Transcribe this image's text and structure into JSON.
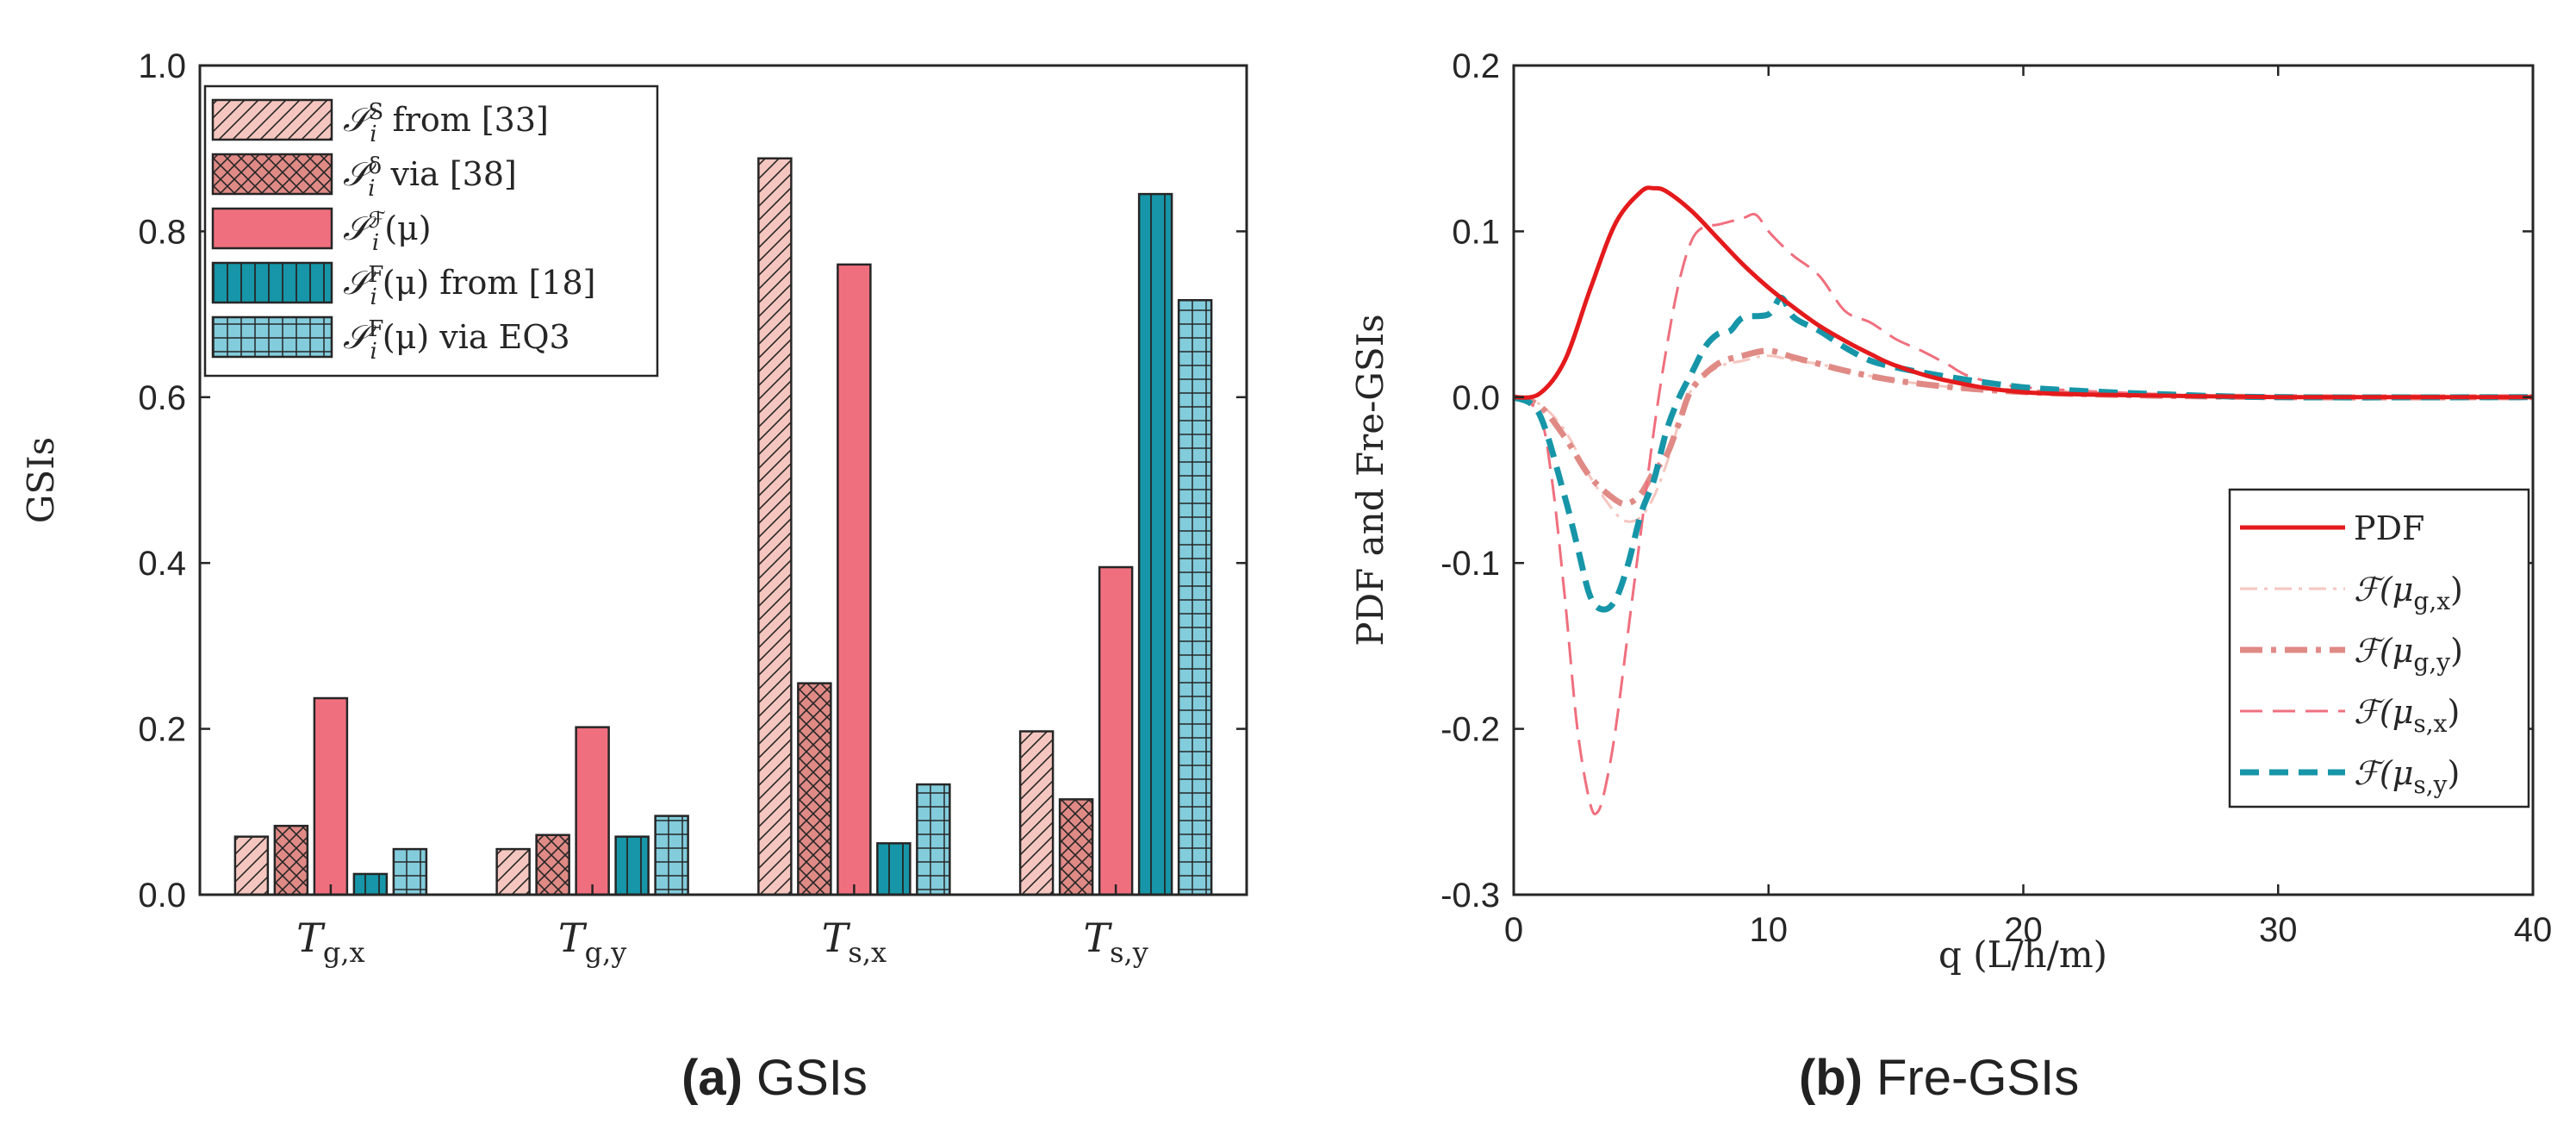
{
  "colors": {
    "light_pink": "#f5c6bf",
    "rose": "#e08a86",
    "coral": "#f06f7e",
    "teal": "#1696a8",
    "light_teal": "#82ccdc",
    "pdf_red": "#e41a1c",
    "frame": "#262626"
  },
  "chart_data": [
    {
      "type": "bar",
      "title": "",
      "caption_label": "(a)",
      "caption_text": "GSIs",
      "xlabel": "",
      "ylabel": "GSIs",
      "ylim": [
        0,
        1.0
      ],
      "yticks": [
        "0.0",
        "0.2",
        "0.4",
        "0.6",
        "0.8",
        "1.0"
      ],
      "categories": [
        {
          "base": "T",
          "sub": "g,x"
        },
        {
          "base": "T",
          "sub": "g,y"
        },
        {
          "base": "T",
          "sub": "s,x"
        },
        {
          "base": "T",
          "sub": "s,y"
        }
      ],
      "legend_position": "top-left",
      "series": [
        {
          "name": "S_i^S from [33]",
          "legend_sym": "𝒮",
          "legend_sub": "i",
          "legend_sup": "S",
          "legend_rest": " from [33]",
          "color": "light_pink",
          "pattern": "diag",
          "values": [
            0.07,
            0.055,
            0.888,
            0.197
          ]
        },
        {
          "name": "S_i^δ via [38]",
          "legend_sym": "𝒮",
          "legend_sub": "i",
          "legend_sup": "δ",
          "legend_rest": " via [38]",
          "color": "rose",
          "pattern": "cross",
          "values": [
            0.083,
            0.072,
            0.255,
            0.115
          ]
        },
        {
          "name": "S_i^F(μ)",
          "legend_sym": "𝒮",
          "legend_sub": "i",
          "legend_sup": "ℱ",
          "legend_rest": "(μ)",
          "color": "coral",
          "pattern": "solid",
          "values": [
            0.237,
            0.202,
            0.76,
            0.395
          ]
        },
        {
          "name": "S_i^F(μ) from [18]",
          "legend_sym": "𝒮",
          "legend_sub": "i",
          "legend_sup": "F",
          "legend_rest": "(μ) from [18]",
          "color": "teal",
          "pattern": "vert",
          "values": [
            0.025,
            0.07,
            0.062,
            0.845
          ]
        },
        {
          "name": "S_i^F(μ) via EQ3",
          "legend_sym": "𝒮",
          "legend_sub": "i",
          "legend_sup": "F",
          "legend_rest": "(μ) via EQ3",
          "color": "light_teal",
          "pattern": "grid",
          "values": [
            0.055,
            0.095,
            0.133,
            0.717
          ]
        }
      ]
    },
    {
      "type": "line",
      "title": "",
      "caption_label": "(b)",
      "caption_text": "Fre-GSIs",
      "xlabel": "q (L/h/m)",
      "ylabel": "PDF and Fre-GSIs",
      "xlim": [
        0,
        40
      ],
      "ylim": [
        -0.3,
        0.2
      ],
      "xticks": [
        "0",
        "10",
        "20",
        "30",
        "40"
      ],
      "yticks": [
        "-0.3",
        "-0.2",
        "-0.1",
        "0.0",
        "0.1",
        "0.2"
      ],
      "legend_position": "bottom-right",
      "series": [
        {
          "name": "PDF",
          "color": "pdf_red",
          "style": "solid",
          "width": 5,
          "x": [
            0,
            1,
            2,
            3,
            4,
            5,
            5.5,
            6,
            7,
            8,
            9,
            10,
            11,
            12,
            13,
            14,
            15,
            17,
            20,
            25,
            30,
            35,
            40
          ],
          "y": [
            0,
            0.002,
            0.022,
            0.065,
            0.105,
            0.124,
            0.126,
            0.124,
            0.112,
            0.096,
            0.08,
            0.066,
            0.054,
            0.043,
            0.034,
            0.026,
            0.019,
            0.01,
            0.003,
            0.001,
            0,
            0,
            0
          ]
        },
        {
          "name": "F(μ_g,x)",
          "color": "light_pink",
          "style": "dashdot",
          "width": 3,
          "x": [
            0,
            1,
            2,
            3,
            4,
            4.5,
            5,
            5.5,
            6,
            6.5,
            7,
            8,
            9,
            10,
            11,
            12,
            13,
            15,
            18,
            22,
            30,
            40
          ],
          "y": [
            0,
            -0.004,
            -0.02,
            -0.048,
            -0.07,
            -0.075,
            -0.072,
            -0.06,
            -0.04,
            -0.015,
            0.005,
            0.018,
            0.022,
            0.025,
            0.022,
            0.02,
            0.016,
            0.01,
            0.005,
            0.002,
            0,
            0
          ]
        },
        {
          "name": "F(μ_g,y)",
          "color": "rose",
          "style": "dashdot",
          "width": 7,
          "x": [
            0,
            1,
            2,
            3,
            4,
            4.5,
            5,
            5.5,
            6,
            6.5,
            7,
            8,
            9,
            10,
            11,
            12,
            13,
            15,
            18,
            22,
            30,
            40
          ],
          "y": [
            0,
            -0.005,
            -0.024,
            -0.048,
            -0.062,
            -0.064,
            -0.058,
            -0.045,
            -0.035,
            -0.015,
            0.005,
            0.02,
            0.025,
            0.028,
            0.024,
            0.02,
            0.016,
            0.01,
            0.005,
            0.002,
            0,
            0
          ]
        },
        {
          "name": "F(μ_s,x)",
          "color": "coral",
          "style": "dashed",
          "width": 3,
          "x": [
            0,
            1,
            1.5,
            2,
            2.5,
            3,
            3.3,
            3.6,
            4,
            4.5,
            5,
            5.5,
            6,
            6.5,
            7,
            7.5,
            8,
            9,
            9.5,
            10,
            10.5,
            11,
            12,
            13,
            14,
            15,
            16,
            17,
            18,
            20,
            25,
            30,
            40
          ],
          "y": [
            0,
            -0.01,
            -0.05,
            -0.12,
            -0.2,
            -0.245,
            -0.25,
            -0.235,
            -0.2,
            -0.14,
            -0.08,
            -0.02,
            0.03,
            0.07,
            0.095,
            0.103,
            0.104,
            0.108,
            0.11,
            0.1,
            0.092,
            0.085,
            0.073,
            0.052,
            0.045,
            0.035,
            0.028,
            0.02,
            0.012,
            0.006,
            0.002,
            0,
            0
          ]
        },
        {
          "name": "F(μ_s,y)",
          "color": "teal",
          "style": "dashed",
          "width": 7,
          "x": [
            0,
            1,
            2,
            2.5,
            3,
            3.5,
            4,
            4.5,
            5,
            5.5,
            6,
            6.5,
            7,
            7.5,
            8,
            8.5,
            9,
            10,
            10.5,
            11,
            12,
            13,
            14,
            15,
            16,
            18,
            20,
            22,
            25,
            30,
            40
          ],
          "y": [
            0,
            -0.01,
            -0.06,
            -0.09,
            -0.12,
            -0.128,
            -0.122,
            -0.1,
            -0.07,
            -0.05,
            -0.02,
            0,
            0.015,
            0.03,
            0.038,
            0.04,
            0.048,
            0.05,
            0.06,
            0.048,
            0.04,
            0.03,
            0.022,
            0.018,
            0.015,
            0.01,
            0.006,
            0.004,
            0.002,
            0,
            0
          ]
        }
      ],
      "legend": [
        {
          "label_plain": "PDF",
          "sym": "",
          "sub": ""
        },
        {
          "label_plain": "",
          "sym": "ℱ(μ",
          "sub": "g,x",
          "close": ")"
        },
        {
          "label_plain": "",
          "sym": "ℱ(μ",
          "sub": "g,y",
          "close": ")"
        },
        {
          "label_plain": "",
          "sym": "ℱ(μ",
          "sub": "s,x",
          "close": ")"
        },
        {
          "label_plain": "",
          "sym": "ℱ(μ",
          "sub": "s,y",
          "close": ")"
        }
      ]
    }
  ]
}
